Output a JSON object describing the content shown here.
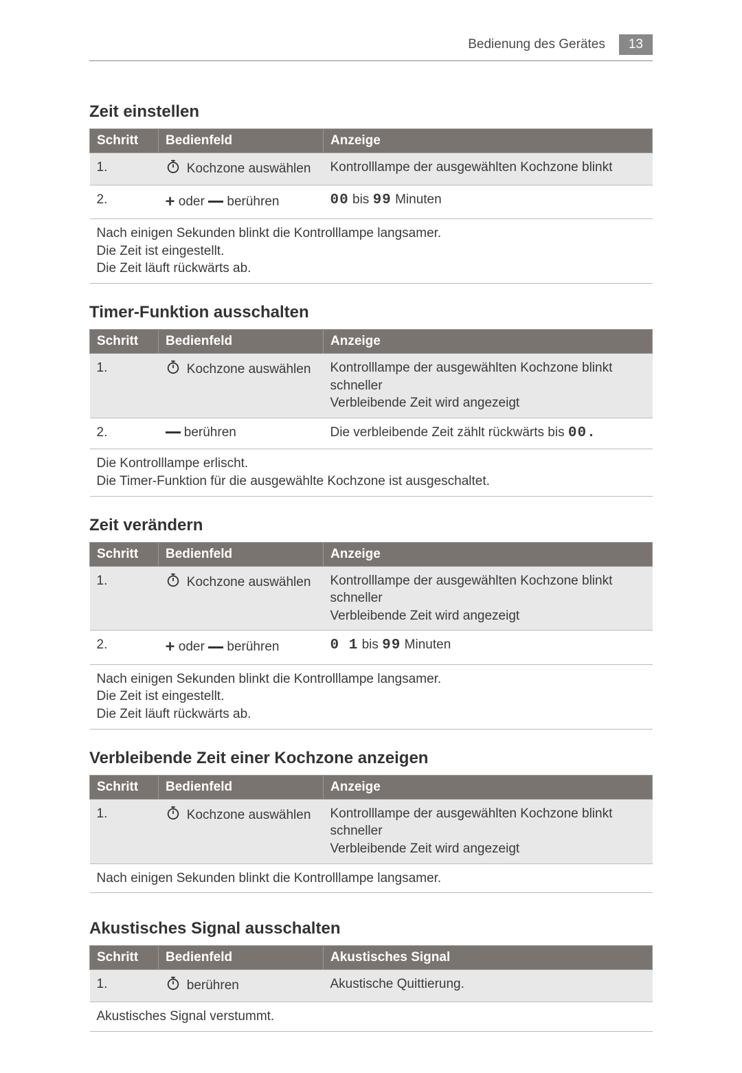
{
  "page": {
    "header_text": "Bedienung des Gerätes",
    "page_number": "13",
    "colors": {
      "header_bg": "#7a7470",
      "stripe_bg": "#e8e8e8",
      "badge_bg": "#888888",
      "text": "#3a3a3a"
    }
  },
  "sections": [
    {
      "title": "Zeit einstellen",
      "columns": [
        "Schritt",
        "Bedienfeld",
        "Anzeige"
      ],
      "rows": [
        {
          "step": "1.",
          "op_icon": "timer",
          "op_text": "Kochzone auswählen",
          "display": "Kontrolllampe der ausgewählten Kochzone blinkt",
          "striped": true
        },
        {
          "step": "2.",
          "op_icon": "plusminus",
          "op_text": "oder",
          "op_suffix": "berühren",
          "display_seg_pre": "00",
          "display_mid": " bis ",
          "display_seg_post": "99",
          "display_suffix": "  Minuten",
          "striped": false
        }
      ],
      "footer": "Nach einigen Sekunden blinkt die Kontrolllampe langsamer.\nDie Zeit ist eingestellt.\nDie Zeit läuft rückwärts ab."
    },
    {
      "title": "Timer-Funktion ausschalten",
      "columns": [
        "Schritt",
        "Bedienfeld",
        "Anzeige"
      ],
      "rows": [
        {
          "step": "1.",
          "op_icon": "timer",
          "op_text": "Kochzone auswählen",
          "display": "Kontrolllampe der ausgewählten Kochzone blinkt schneller\nVerbleibende Zeit wird angezeigt",
          "striped": true
        },
        {
          "step": "2.",
          "op_icon": "minus",
          "op_suffix": "berühren",
          "display_pre": "Die verbleibende Zeit zählt rückwärts bis ",
          "display_seg_post": "00.",
          "striped": false
        }
      ],
      "footer": "Die Kontrolllampe erlischt.\nDie Timer-Funktion für die ausgewählte Kochzone ist ausgeschaltet."
    },
    {
      "title": "Zeit verändern",
      "columns": [
        "Schritt",
        "Bedienfeld",
        "Anzeige"
      ],
      "rows": [
        {
          "step": "1.",
          "op_icon": "timer",
          "op_text": "Kochzone auswählen",
          "display": "Kontrolllampe der ausgewählten Kochzone blinkt schneller\nVerbleibende Zeit wird angezeigt",
          "striped": true
        },
        {
          "step": "2.",
          "op_icon": "plusminus",
          "op_text": "oder",
          "op_suffix": "berühren",
          "display_seg_pre": "0 1",
          "display_mid": " bis ",
          "display_seg_post": "99",
          "display_suffix": "  Minuten",
          "striped": false
        }
      ],
      "footer": "Nach einigen Sekunden blinkt die Kontrolllampe langsamer.\nDie Zeit ist eingestellt.\nDie Zeit läuft rückwärts ab."
    },
    {
      "title": "Verbleibende Zeit einer Kochzone anzeigen",
      "columns": [
        "Schritt",
        "Bedienfeld",
        "Anzeige"
      ],
      "rows": [
        {
          "step": "1.",
          "op_icon": "timer",
          "op_text": "Kochzone auswählen",
          "display": "Kontrolllampe der ausgewählten Kochzone blinkt schneller\nVerbleibende Zeit wird angezeigt",
          "striped": true
        }
      ],
      "footer": "Nach einigen Sekunden blinkt die Kontrolllampe langsamer."
    },
    {
      "title": "Akustisches Signal ausschalten",
      "gap_above": true,
      "columns": [
        "Schritt",
        "Bedienfeld",
        "Akustisches Signal"
      ],
      "rows": [
        {
          "step": "1.",
          "op_icon": "timer",
          "op_suffix": "berühren",
          "display": "Akustische Quittierung.",
          "striped": true
        }
      ],
      "footer": "Akustisches Signal verstummt."
    }
  ]
}
